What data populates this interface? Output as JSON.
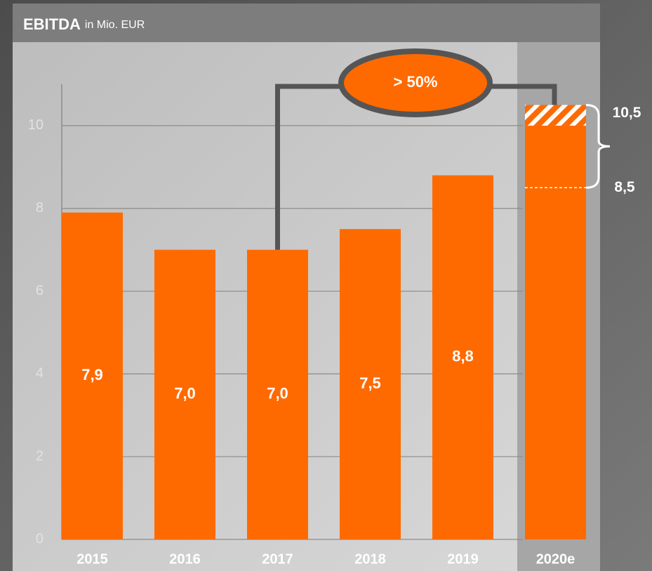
{
  "chart_data": {
    "type": "bar",
    "title": "EBITDA",
    "subtitle": "in Mio. EUR",
    "categories": [
      "2015",
      "2016",
      "2017",
      "2018",
      "2019",
      "2020e"
    ],
    "series": [
      {
        "color": "#ff6a00",
        "values": [
          7.9,
          7.0,
          7.0,
          7.5,
          8.8,
          10
        ],
        "value_labels": [
          "7,9",
          "7,0",
          "7,0",
          "7,5",
          "8,8",
          null
        ]
      }
    ],
    "range_low": 8.5,
    "range_low_label": "8,5",
    "range_high": 10.5,
    "range_high_label": "10,5",
    "annotation": "> 50%",
    "ylim": [
      0,
      11
    ],
    "yticks": [
      0,
      2,
      4,
      6,
      8,
      10
    ],
    "grid": true
  }
}
